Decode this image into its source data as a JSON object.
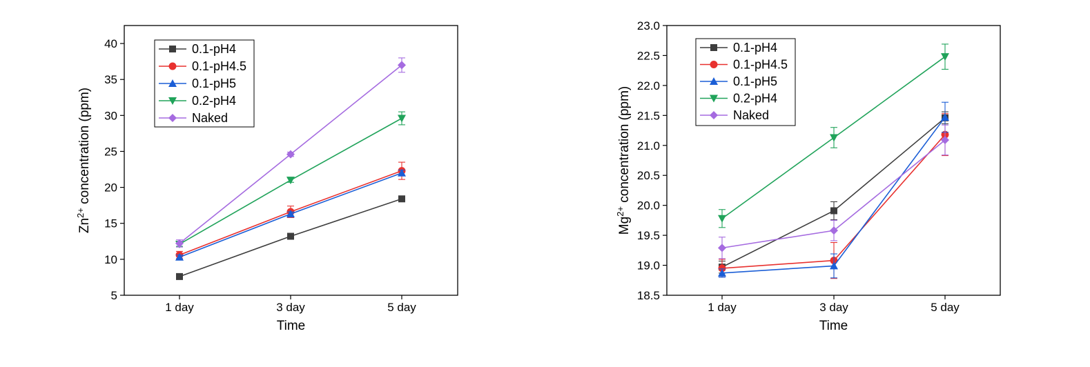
{
  "chart_data": [
    {
      "type": "line",
      "xlabel": "Time",
      "ylabel_prefix": "Zn",
      "ylabel_sup": "2+",
      "ylabel_suffix": " concentration (ppm)",
      "categories": [
        "1 day",
        "3 day",
        "5 day"
      ],
      "ylim": [
        5,
        42.5
      ],
      "yticks": [
        5,
        10,
        15,
        20,
        25,
        30,
        35,
        40
      ],
      "ytick_labels": [
        "5",
        "10",
        "15",
        "20",
        "25",
        "30",
        "35",
        "40"
      ],
      "legend_position": "top-left",
      "series": [
        {
          "name": "0.1-pH4",
          "color": "#3d3d3d",
          "marker": "square",
          "values": [
            7.6,
            13.2,
            18.4
          ],
          "errors": [
            0.2,
            0.2,
            0.3
          ]
        },
        {
          "name": "0.1-pH4.5",
          "color": "#e8312f",
          "marker": "circle",
          "values": [
            10.6,
            16.6,
            22.3
          ],
          "errors": [
            0.5,
            0.8,
            1.2
          ]
        },
        {
          "name": "0.1-pH5",
          "color": "#1b5ed6",
          "marker": "triangle-up",
          "values": [
            10.3,
            16.3,
            22.0
          ],
          "errors": [
            0.3,
            0.3,
            0.4
          ]
        },
        {
          "name": "0.2-pH4",
          "color": "#20a35a",
          "marker": "triangle-down",
          "values": [
            12.1,
            21.0,
            29.6
          ],
          "errors": [
            0.3,
            0.3,
            0.9
          ]
        },
        {
          "name": "Naked",
          "color": "#a56be0",
          "marker": "diamond",
          "values": [
            12.2,
            24.6,
            37.0
          ],
          "errors": [
            0.5,
            0.3,
            1.0
          ]
        }
      ]
    },
    {
      "type": "line",
      "xlabel": "Time",
      "ylabel_prefix": "Mg",
      "ylabel_sup": "2+",
      "ylabel_suffix": " concentration (ppm)",
      "categories": [
        "1 day",
        "3 day",
        "5 day"
      ],
      "ylim": [
        18.5,
        23.0
      ],
      "yticks": [
        18.5,
        19.0,
        19.5,
        20.0,
        20.5,
        21.0,
        21.5,
        22.0,
        22.5,
        23.0
      ],
      "ytick_labels": [
        "18.5",
        "19.0",
        "19.5",
        "20.0",
        "20.5",
        "21.0",
        "21.5",
        "22.0",
        "22.5",
        "23.0"
      ],
      "legend_position": "top-left",
      "series": [
        {
          "name": "0.1-pH4",
          "color": "#3d3d3d",
          "marker": "square",
          "values": [
            18.97,
            19.91,
            21.46
          ],
          "errors": [
            0.1,
            0.15,
            0.1
          ]
        },
        {
          "name": "0.1-pH4.5",
          "color": "#e8312f",
          "marker": "circle",
          "values": [
            18.95,
            19.08,
            21.18
          ],
          "errors": [
            0.15,
            0.3,
            0.35
          ]
        },
        {
          "name": "0.1-pH5",
          "color": "#1b5ed6",
          "marker": "triangle-up",
          "values": [
            18.87,
            18.99,
            21.47
          ],
          "errors": [
            0.07,
            0.2,
            0.25
          ]
        },
        {
          "name": "0.2-pH4",
          "color": "#20a35a",
          "marker": "triangle-down",
          "values": [
            19.78,
            21.13,
            22.48
          ],
          "errors": [
            0.15,
            0.17,
            0.21
          ]
        },
        {
          "name": "Naked",
          "color": "#a56be0",
          "marker": "diamond",
          "values": [
            19.29,
            19.58,
            21.09
          ],
          "errors": [
            0.18,
            0.17,
            0.25
          ]
        }
      ]
    }
  ]
}
